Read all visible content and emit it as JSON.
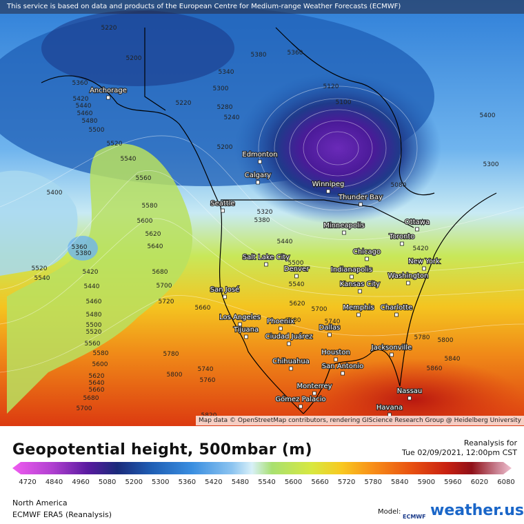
{
  "header": {
    "notice": "This service is based on data and products of the European Centre for Medium-range Weather Forecasts (ECMWF)"
  },
  "map": {
    "cities": [
      "Anchorage",
      "Edmonton",
      "Calgary",
      "Winnipeg",
      "Thunder Bay",
      "Seattle",
      "Ottawa",
      "Minneapolis",
      "Toronto",
      "Salt Lake City",
      "Chicago",
      "New York",
      "Denver",
      "Indianapolis",
      "Washington",
      "Kansas City",
      "San José",
      "Memphis",
      "Charlotte",
      "Los Angeles",
      "Phoenix",
      "Dallas",
      "Tijuana",
      "Ciudad Juárez",
      "Jacksonville",
      "Houston",
      "Chihuahua",
      "San Antonio",
      "Monterrey",
      "Nassau",
      "Gómez Palacio",
      "Havana"
    ],
    "contour_labels": [
      5220,
      5200,
      5380,
      5360,
      5340,
      5300,
      5280,
      5240,
      5220,
      5200,
      5360,
      5420,
      5440,
      5460,
      5480,
      5500,
      5520,
      5540,
      5560,
      5580,
      5600,
      5620,
      5640,
      5680,
      5700,
      5720,
      5400,
      5360,
      5380,
      5520,
      5540,
      5420,
      5440,
      5460,
      5480,
      5500,
      5520,
      5560,
      5580,
      5600,
      5620,
      5640,
      5660,
      5680,
      5700,
      5780,
      5800,
      5740,
      5760,
      5820,
      5660,
      5320,
      5380,
      5440,
      5500,
      5540,
      5620,
      5680,
      5700,
      5740,
      5780,
      5800,
      5840,
      5860,
      5420,
      5400,
      5300,
      5120,
      5100,
      5080
    ],
    "attribution": "Map data © OpenStreetMap contributors, rendering GIScience Research Group @ Heidelberg University"
  },
  "legend": {
    "title": "Geopotential height, 500mbar (m)",
    "ticks": [
      4720,
      4840,
      4960,
      5080,
      5200,
      5300,
      5360,
      5420,
      5480,
      5540,
      5600,
      5660,
      5720,
      5780,
      5840,
      5900,
      5960,
      6020,
      6080
    ]
  },
  "info": {
    "reanalysis_label": "Reanalysis for",
    "datetime": "Tue 02/09/2021, 12:00pm CST",
    "region": "North America",
    "model_name": "ECMWF ERA5 (Reanalysis)",
    "model_label": "Model:",
    "model_logo": "ECMWF",
    "brand": "weather.us"
  }
}
